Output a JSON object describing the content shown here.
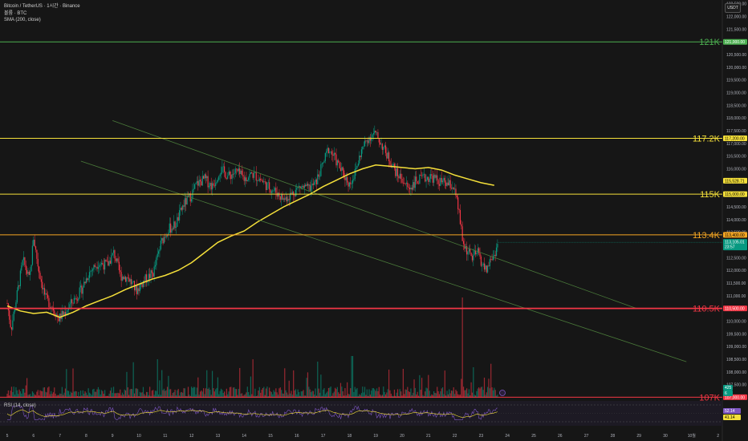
{
  "legend": {
    "symbol": "Bitcoin / TetherUS · 1시간 · Binance",
    "volume": "볼륨 · BTC",
    "sma": "SMA (200, close)"
  },
  "rsi_label": "RSI (14, close)",
  "currency_button": "USDT",
  "price_axis": {
    "ticks": [
      "122,500.00",
      "122,000.00",
      "121,500.00",
      "121,000.00",
      "120,500.00",
      "120,000.00",
      "119,500.00",
      "119,000.00",
      "118,500.00",
      "118,000.00",
      "117,500.00",
      "117,000.00",
      "116,500.00",
      "116,000.00",
      "115,500.00",
      "115,000.00",
      "114,500.00",
      "114,000.00",
      "113,500.00",
      "113,000.00",
      "112,500.00",
      "112,000.00",
      "111,500.00",
      "111,000.00",
      "110,500.00",
      "110,000.00",
      "109,500.00",
      "109,000.00",
      "108,500.00",
      "108,000.00",
      "107,500.00",
      "107,000.00"
    ],
    "min": 106950,
    "max": 122650
  },
  "time_axis": [
    "5",
    "6",
    "7",
    "8",
    "9",
    "10",
    "11",
    "12",
    "13",
    "14",
    "15",
    "16",
    "17",
    "18",
    "19",
    "20",
    "21",
    "22",
    "23",
    "24",
    "25",
    "26",
    "27",
    "28",
    "29",
    "30",
    "10월",
    "2"
  ],
  "levels": [
    {
      "label": "121K",
      "price": 121000,
      "color": "#4caf50",
      "badge": "121,000.00",
      "badge_text": "#ffffff"
    },
    {
      "label": "117.2K",
      "price": 117200,
      "color": "#f5e03a",
      "badge": "117,200.00",
      "badge_text": "#000000"
    },
    {
      "label": "115K",
      "price": 115000,
      "color": "#f5e03a",
      "badge": "115,000.00",
      "badge_text": "#000000"
    },
    {
      "label": "113.4K",
      "price": 113400,
      "color": "#f5a623",
      "badge": "113,400.00",
      "badge_text": "#000000"
    },
    {
      "label": "110.5K",
      "price": 110500,
      "color": "#f23645",
      "badge": "110,500.00",
      "badge_text": "#ffffff"
    },
    {
      "label": "107K",
      "price": 107000,
      "color": "#f23645",
      "badge": "107,000.00",
      "badge_text": "#ffffff"
    }
  ],
  "sma_badge": {
    "value": "115,528.71",
    "color": "#f5e03a"
  },
  "current_price": {
    "value": "113,105.01",
    "countdown": "23:57",
    "color": "#089981"
  },
  "volume_badges": [
    "425",
    "6"
  ],
  "rsi_badges": {
    "rsi": "52.14",
    "ma": "41.14"
  },
  "colors": {
    "up": "#089981",
    "down": "#f23645",
    "sma": "#f5e03a",
    "channel": "#4a7a3a",
    "rsi": "#7e57c2",
    "rsi_ma": "#f5e03a"
  },
  "channel_lines": [
    {
      "from": {
        "day": 9.0,
        "price": 117900
      },
      "to": {
        "day": 28.9,
        "price": 110500
      }
    },
    {
      "from": {
        "day": 7.8,
        "price": 116300
      },
      "to": {
        "day": 30.8,
        "price": 108400
      }
    }
  ]
}
